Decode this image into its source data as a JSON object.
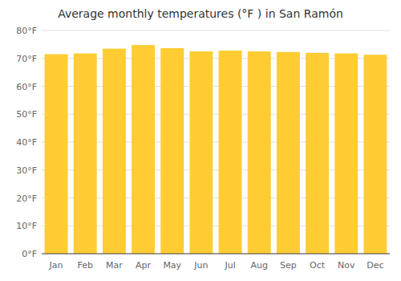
{
  "chart_data": {
    "type": "bar",
    "title": "Average monthly temperatures (°F ) in San Ramón",
    "categories": [
      "Jan",
      "Feb",
      "Mar",
      "Apr",
      "May",
      "Jun",
      "Jul",
      "Aug",
      "Sep",
      "Oct",
      "Nov",
      "Dec"
    ],
    "values": [
      71.5,
      71.8,
      73.5,
      74.8,
      73.7,
      72.5,
      72.8,
      72.5,
      72.3,
      72.0,
      71.8,
      71.3
    ],
    "color": "#FFCC33",
    "ylim": [
      0,
      80
    ],
    "yticks": [
      {
        "value": 0,
        "label": "0°F"
      },
      {
        "value": 10,
        "label": "10°F"
      },
      {
        "value": 20,
        "label": "20°F"
      },
      {
        "value": 30,
        "label": "30°F"
      },
      {
        "value": 40,
        "label": "40°F"
      },
      {
        "value": 50,
        "label": "50°F"
      },
      {
        "value": 60,
        "label": "60°F"
      },
      {
        "value": 70,
        "label": "70°F"
      },
      {
        "value": 80,
        "label": "80°F"
      }
    ],
    "grid": true
  }
}
